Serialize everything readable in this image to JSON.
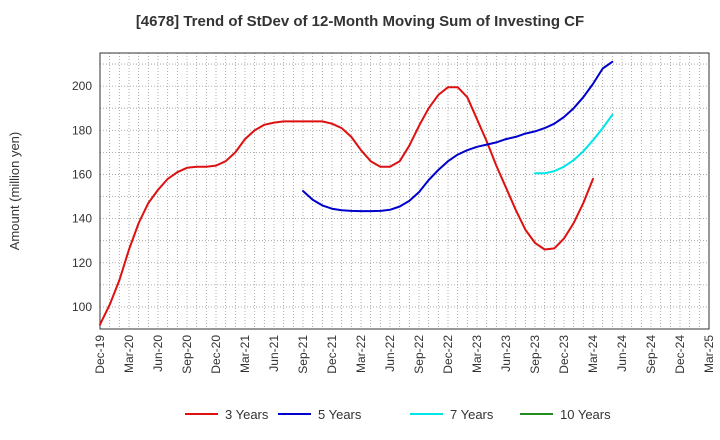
{
  "chart_data": {
    "type": "line",
    "title": "[4678]  Trend of StDev of 12-Month Moving Sum of Investing CF",
    "xlabel": "",
    "ylabel": "Amount (million yen)",
    "ylim": [
      90,
      215
    ],
    "yticks": [
      100,
      120,
      140,
      160,
      180,
      200
    ],
    "grid": true,
    "legend_position": "bottom",
    "x_tick_labels": [
      "Dec-19",
      "Mar-20",
      "Jun-20",
      "Sep-20",
      "Dec-20",
      "Mar-21",
      "Jun-21",
      "Sep-21",
      "Dec-21",
      "Mar-22",
      "Jun-22",
      "Sep-22",
      "Dec-22",
      "Mar-23",
      "Jun-23",
      "Sep-23",
      "Dec-23",
      "Mar-24",
      "Jun-24",
      "Sep-24",
      "Dec-24",
      "Mar-25"
    ],
    "series": [
      {
        "name": "3 Years",
        "color": "#dd1111",
        "start": "Dec-19",
        "values": [
          92,
          101,
          112,
          126,
          138,
          147,
          153,
          158,
          161,
          163,
          163.5,
          163.5,
          164,
          166,
          170,
          176,
          180,
          182.5,
          183.5,
          184,
          184,
          184,
          184,
          184,
          183,
          181,
          177,
          171,
          166,
          163.5,
          163.5,
          166,
          173,
          182,
          190,
          196,
          199.5,
          199.5,
          195,
          185,
          175,
          164,
          154,
          144,
          135,
          129,
          126,
          126.5,
          131,
          138,
          147,
          158
        ]
      },
      {
        "name": "5 Years",
        "color": "#0000cc",
        "start": "Sep-21",
        "values": [
          152.5,
          148.5,
          146,
          144.5,
          143.8,
          143.5,
          143.4,
          143.4,
          143.5,
          144,
          145.5,
          148,
          152,
          157.5,
          162,
          166,
          169,
          171,
          172.5,
          173.5,
          174.5,
          176,
          177,
          178.5,
          179.5,
          181,
          183,
          186,
          190,
          195,
          201,
          208,
          211
        ]
      },
      {
        "name": "7 Years",
        "color": "#00e5e5",
        "start": "Sep-23",
        "values": [
          160.5,
          160.5,
          161.5,
          163.5,
          166.5,
          170.5,
          175.5,
          181,
          187
        ]
      },
      {
        "name": "10 Years",
        "color": "#228b22",
        "start": "Mar-24",
        "values": []
      }
    ]
  }
}
